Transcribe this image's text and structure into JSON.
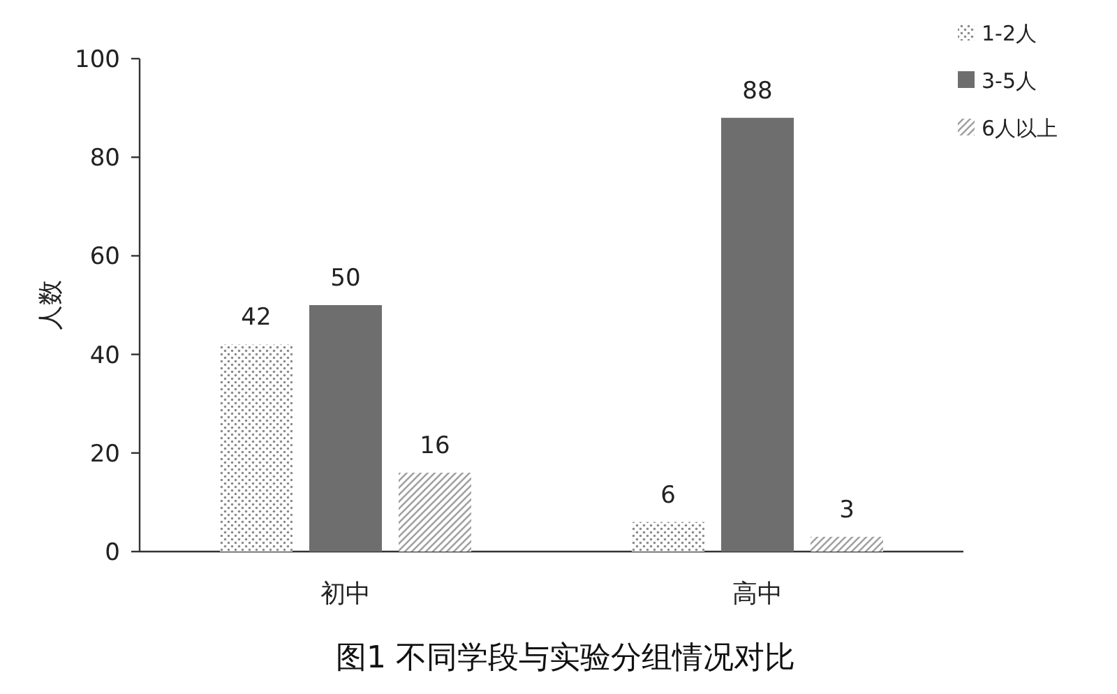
{
  "chart_data": {
    "type": "bar",
    "title": "图1 不同学段与实验分组情况对比",
    "ylabel": "人数",
    "categories": [
      "初中",
      "高中"
    ],
    "series": [
      {
        "name": "1-2人",
        "color": "#8a8a8a",
        "values": [
          42,
          6
        ]
      },
      {
        "name": "3-5人",
        "color": "#6e6e6e",
        "values": [
          50,
          88
        ]
      },
      {
        "name": "6人以上",
        "color": "#a0a0a0",
        "values": [
          16,
          3
        ]
      }
    ],
    "ylim": [
      0,
      100
    ],
    "yticks": [
      0,
      20,
      40,
      60,
      80,
      100
    ],
    "data_labels": true,
    "legend": "top right",
    "grid": false
  }
}
